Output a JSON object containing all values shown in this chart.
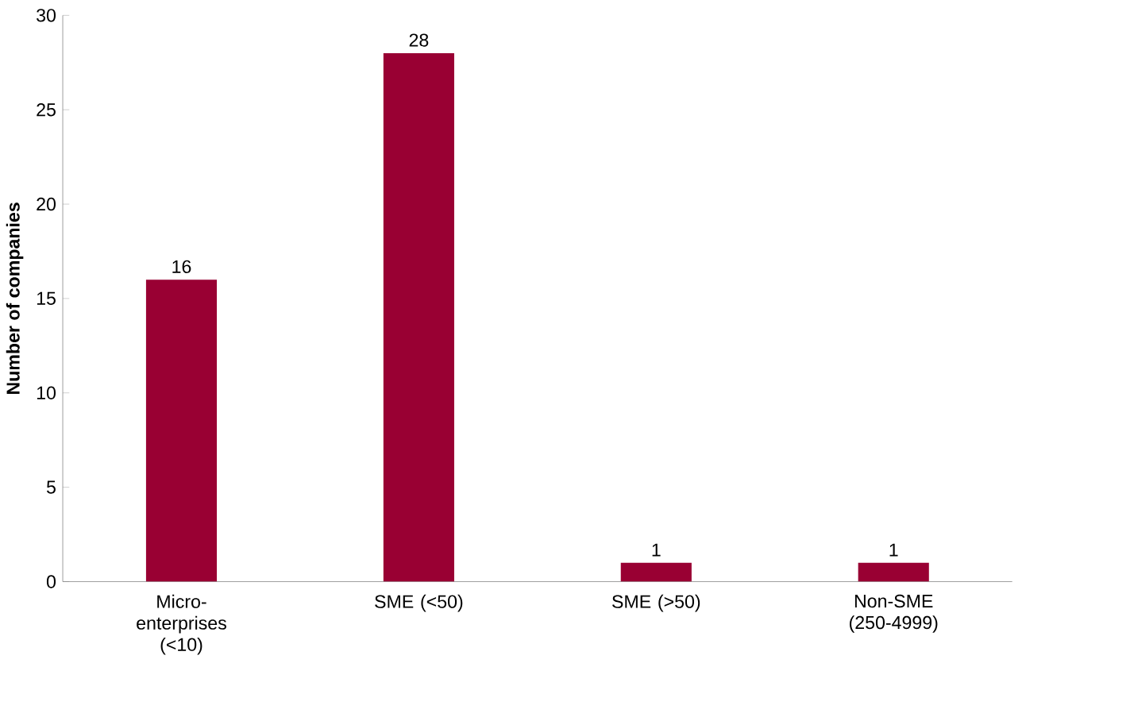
{
  "chart_data": {
    "type": "bar",
    "ylabel": "Number of companies",
    "categories": [
      "Micro-enterprises (<10)",
      "SME (<50)",
      "SME (>50)",
      "Non-SME (250-4999)"
    ],
    "values": [
      16,
      28,
      1,
      1
    ],
    "color": "#990033",
    "data_labels": true,
    "ylim": [
      0,
      30
    ],
    "yticks": [
      0,
      5,
      10,
      15,
      20,
      25,
      30
    ],
    "grid": false
  }
}
